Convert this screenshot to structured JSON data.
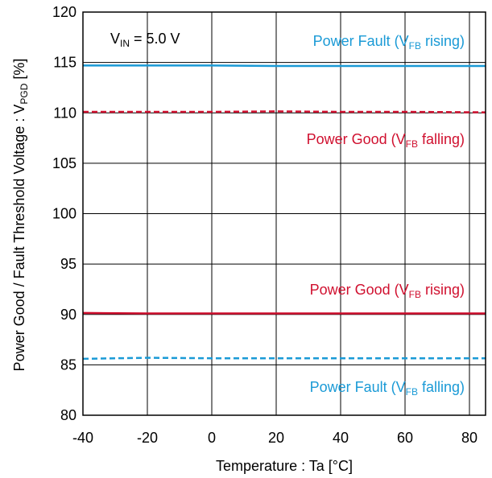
{
  "chart_data": {
    "type": "line",
    "xlabel": "Temperature : Ta [°C]",
    "ylabel": {
      "main": "Power Good / Fault Threshold Voltage : V",
      "sub": "PGD",
      "tail": " [%]"
    },
    "xlim": [
      -40,
      85
    ],
    "ylim": [
      80,
      120
    ],
    "xticks": [
      -40,
      -20,
      0,
      20,
      40,
      60,
      80
    ],
    "yticks": [
      80,
      85,
      90,
      95,
      100,
      105,
      110,
      115,
      120
    ],
    "grid": true,
    "condition": {
      "main": "V",
      "sub": "IN",
      "tail": " = 5.0 V"
    },
    "colors": {
      "fault": "#1a9ad6",
      "good": "#d0102f"
    },
    "series": [
      {
        "key": "fault-rising",
        "label": {
          "main": "Power Fault (V",
          "sub": "FB",
          "tail": " rising)"
        },
        "color": "#1a9ad6",
        "dashed": false,
        "x": [
          -40,
          -20,
          0,
          20,
          40,
          60,
          85
        ],
        "y": [
          114.7,
          114.7,
          114.7,
          114.65,
          114.65,
          114.65,
          114.65
        ]
      },
      {
        "key": "good-falling",
        "label": {
          "main": "Power Good (V",
          "sub": "FB",
          "tail": " falling)"
        },
        "color": "#d0102f",
        "dashed": true,
        "x": [
          -40,
          -20,
          0,
          20,
          40,
          60,
          85
        ],
        "y": [
          110.1,
          110.1,
          110.1,
          110.15,
          110.1,
          110.1,
          110.05
        ]
      },
      {
        "key": "good-rising",
        "label": {
          "main": "Power Good (V",
          "sub": "FB",
          "tail": " rising)"
        },
        "color": "#d0102f",
        "dashed": false,
        "x": [
          -40,
          -20,
          0,
          20,
          40,
          60,
          85
        ],
        "y": [
          90.15,
          90.1,
          90.1,
          90.1,
          90.1,
          90.1,
          90.1
        ]
      },
      {
        "key": "fault-falling",
        "label": {
          "main": "Power Fault (V",
          "sub": "FB",
          "tail": " falling)"
        },
        "color": "#1a9ad6",
        "dashed": true,
        "x": [
          -40,
          -20,
          0,
          20,
          40,
          60,
          85
        ],
        "y": [
          85.6,
          85.7,
          85.65,
          85.65,
          85.65,
          85.65,
          85.65
        ]
      }
    ]
  }
}
